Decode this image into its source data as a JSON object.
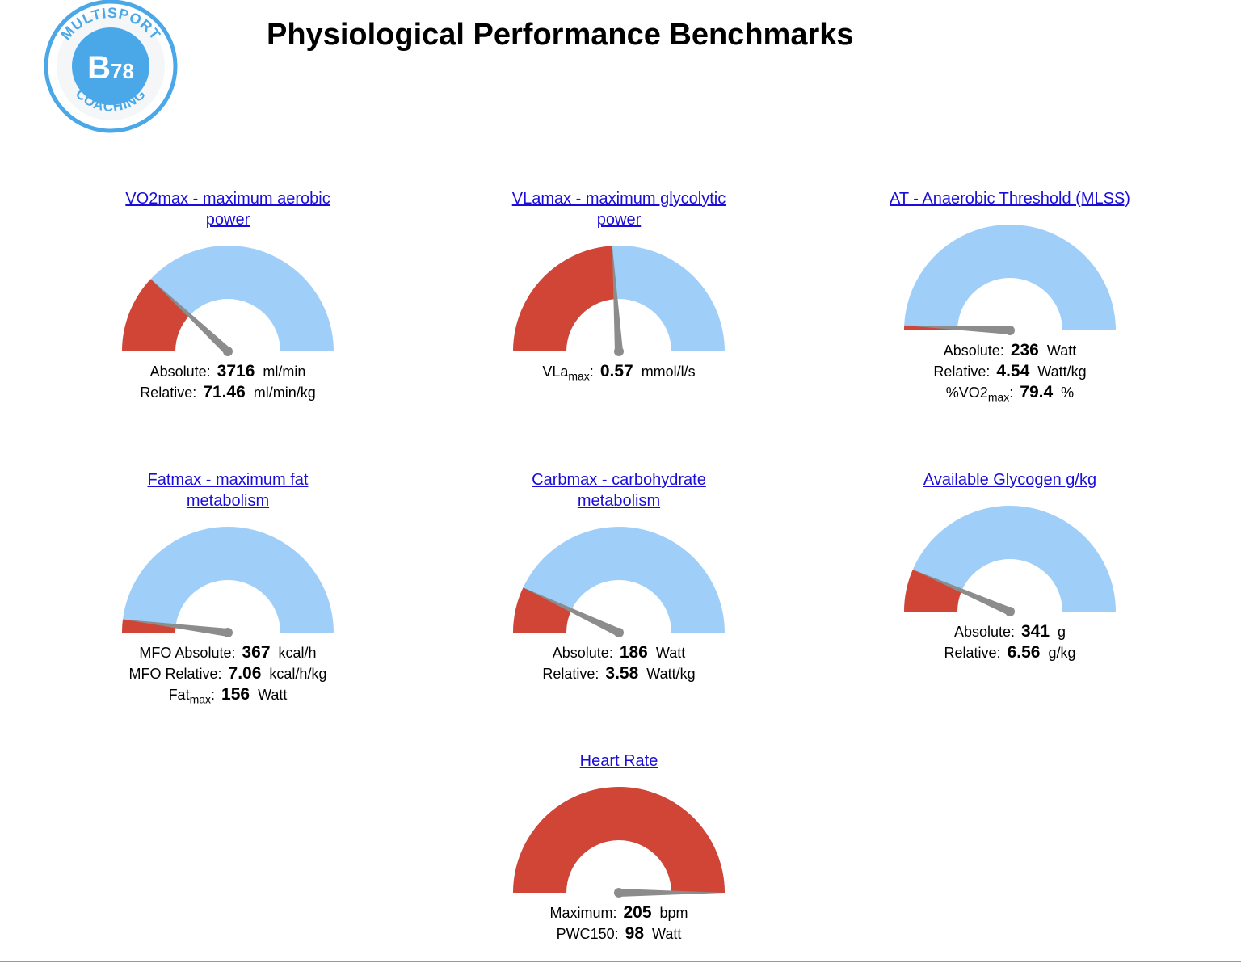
{
  "logo": {
    "top_text": "MULTISPORT",
    "center_text": "B78",
    "bottom_text": "COACHING",
    "color": "#4aa8e8"
  },
  "page_title": "Physiological Performance Benchmarks",
  "colors": {
    "gauge_fill": "#d14536",
    "gauge_track": "#9fcff8",
    "needle": "#8c8c8c",
    "link": "#1a0dd9"
  },
  "cards": [
    {
      "title": "VO2max - maximum aerobic power",
      "gauge_fraction": 0.24,
      "metrics": [
        {
          "label": "Absolute:",
          "value": "3716",
          "unit": "ml/min"
        },
        {
          "label": "Relative:",
          "value": "71.46",
          "unit": "ml/min/kg"
        }
      ]
    },
    {
      "title": "VLamax - maximum glycolytic power",
      "gauge_fraction": 0.48,
      "metrics": [
        {
          "label": "VLa",
          "sub": "max",
          "label_suffix": ":",
          "value": "0.57",
          "unit": "mmol/l/s"
        }
      ]
    },
    {
      "title": "AT - Anaerobic Threshold (MLSS)",
      "gauge_fraction": 0.015,
      "metrics": [
        {
          "label": "Absolute:",
          "value": "236",
          "unit": "Watt"
        },
        {
          "label": "Relative:",
          "value": "4.54",
          "unit": "Watt/kg"
        },
        {
          "label": "%VO2",
          "sub": "max",
          "label_suffix": ":",
          "value": "79.4",
          "unit": "%"
        }
      ]
    },
    {
      "title": "Fatmax - maximum fat metabolism",
      "gauge_fraction": 0.04,
      "metrics": [
        {
          "label": "MFO Absolute:",
          "value": "367",
          "unit": "kcal/h"
        },
        {
          "label": "MFO Relative:",
          "value": "7.06",
          "unit": "kcal/h/kg"
        },
        {
          "label": "Fat",
          "sub": "max",
          "label_suffix": ":",
          "value": "156",
          "unit": "Watt"
        }
      ]
    },
    {
      "title": "Carbmax - carbohydrate metabolism",
      "gauge_fraction": 0.14,
      "metrics": [
        {
          "label": "Absolute:",
          "value": "186",
          "unit": "Watt"
        },
        {
          "label": "Relative:",
          "value": "3.58",
          "unit": "Watt/kg"
        }
      ]
    },
    {
      "title": "Available Glycogen g/kg",
      "gauge_fraction": 0.13,
      "metrics": [
        {
          "label": "Absolute:",
          "value": "341",
          "unit": "g"
        },
        {
          "label": "Relative:",
          "value": "6.56",
          "unit": "g/kg"
        }
      ]
    },
    {
      "title": "Heart Rate",
      "gauge_fraction": 1.0,
      "metrics": [
        {
          "label": "Maximum:",
          "value": "205",
          "unit": "bpm"
        },
        {
          "label": "PWC150:",
          "value": "98",
          "unit": "Watt"
        }
      ]
    }
  ]
}
